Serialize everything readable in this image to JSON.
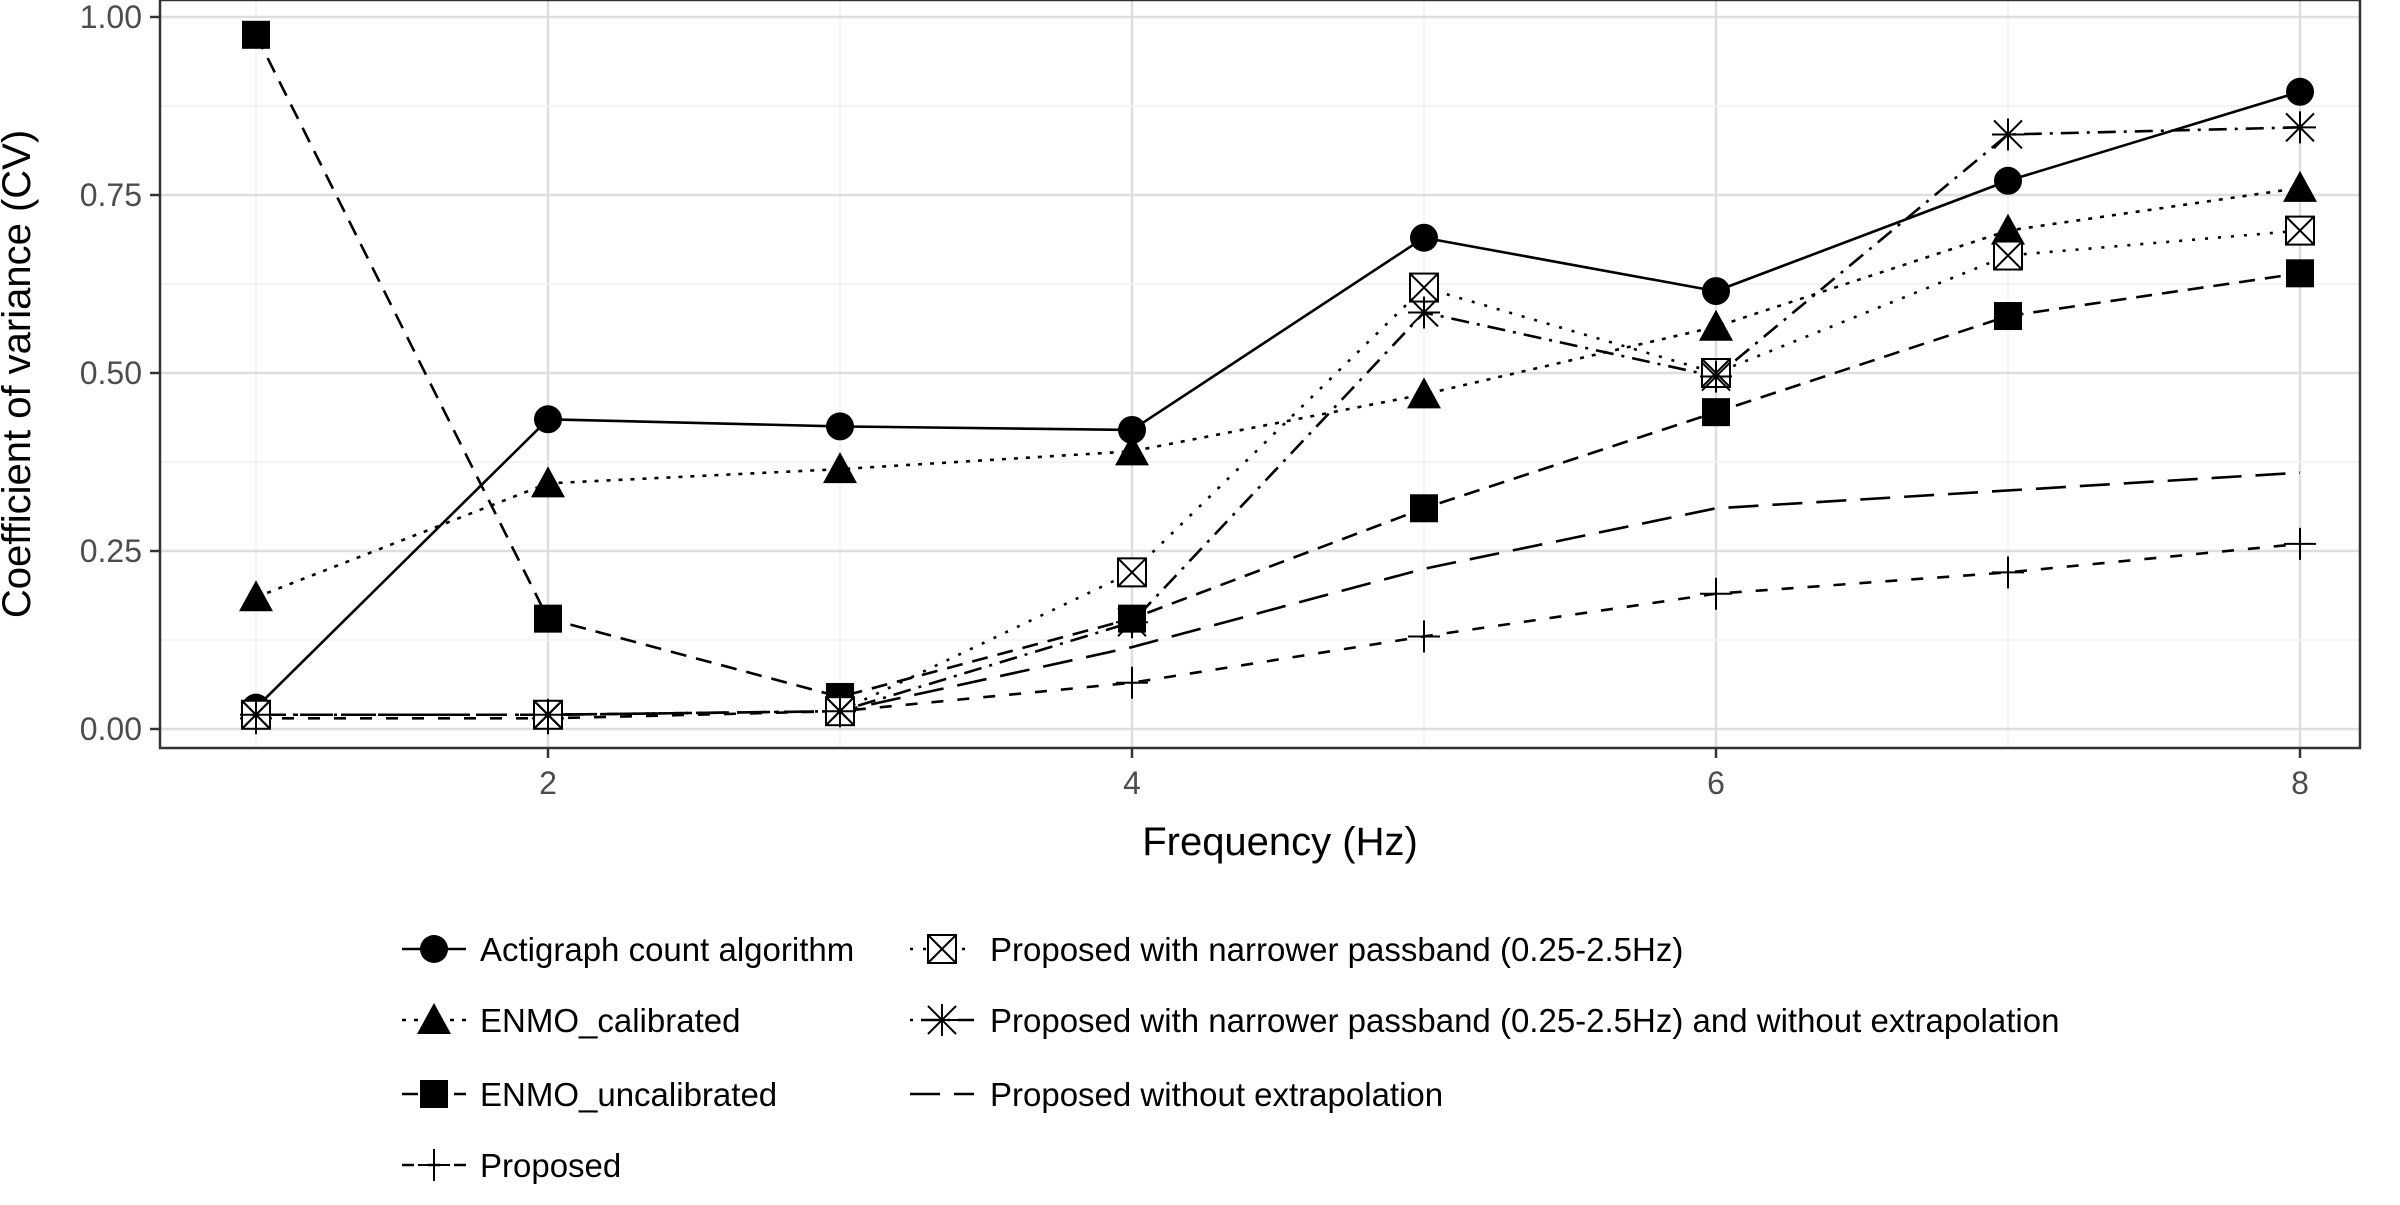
{
  "chart_data": {
    "type": "line",
    "xlabel": "Frequency (Hz)",
    "ylabel": "Coefficient of variance (CV)",
    "xlim": [
      0.5,
      8.5
    ],
    "ylim": [
      0,
      1.0
    ],
    "x_ticks": [
      2,
      4,
      6,
      8
    ],
    "y_ticks": [
      0.0,
      0.25,
      0.5,
      0.75,
      1.0
    ],
    "x_tick_labels": [
      "2",
      "4",
      "6",
      "8"
    ],
    "y_tick_labels": [
      "0.00",
      "0.25",
      "0.50",
      "0.75",
      "1.00"
    ],
    "grid": true,
    "legend_position": "bottom",
    "x": [
      1,
      2,
      3,
      4,
      5,
      6,
      7,
      8
    ],
    "series": [
      {
        "name": "Actigraph count algorithm",
        "marker": "circle",
        "dash": "solid",
        "values": [
          0.03,
          0.435,
          0.425,
          0.42,
          0.69,
          0.615,
          0.77,
          0.895
        ]
      },
      {
        "name": "ENMO_calibrated",
        "marker": "triangle",
        "dash": "dotted-dense",
        "values": [
          0.185,
          0.345,
          0.365,
          0.39,
          0.47,
          0.565,
          0.7,
          0.76
        ]
      },
      {
        "name": "ENMO_uncalibrated",
        "marker": "square",
        "dash": "dashed",
        "values": [
          0.975,
          0.155,
          0.045,
          0.155,
          0.31,
          0.445,
          0.58,
          0.64
        ]
      },
      {
        "name": "Proposed",
        "marker": "plus",
        "dash": "dashed-short",
        "values": [
          0.015,
          0.015,
          0.025,
          0.065,
          0.13,
          0.19,
          0.22,
          0.26
        ]
      },
      {
        "name": "Proposed with narrower passband (0.25-2.5Hz)",
        "marker": "boxcross",
        "dash": "dotted",
        "values": [
          0.02,
          0.02,
          0.025,
          0.22,
          0.62,
          0.5,
          0.665,
          0.7
        ]
      },
      {
        "name": "Proposed with narrower passband (0.25-2.5Hz) and without extrapolation",
        "marker": "asterisk",
        "dash": "dotdash",
        "values": [
          0.02,
          0.02,
          0.025,
          0.15,
          0.585,
          0.495,
          0.835,
          0.845
        ]
      },
      {
        "name": "Proposed without extrapolation",
        "marker": "none",
        "dash": "longdash",
        "values": [
          0.02,
          0.02,
          0.025,
          0.115,
          0.225,
          0.31,
          0.335,
          0.36
        ]
      }
    ]
  }
}
